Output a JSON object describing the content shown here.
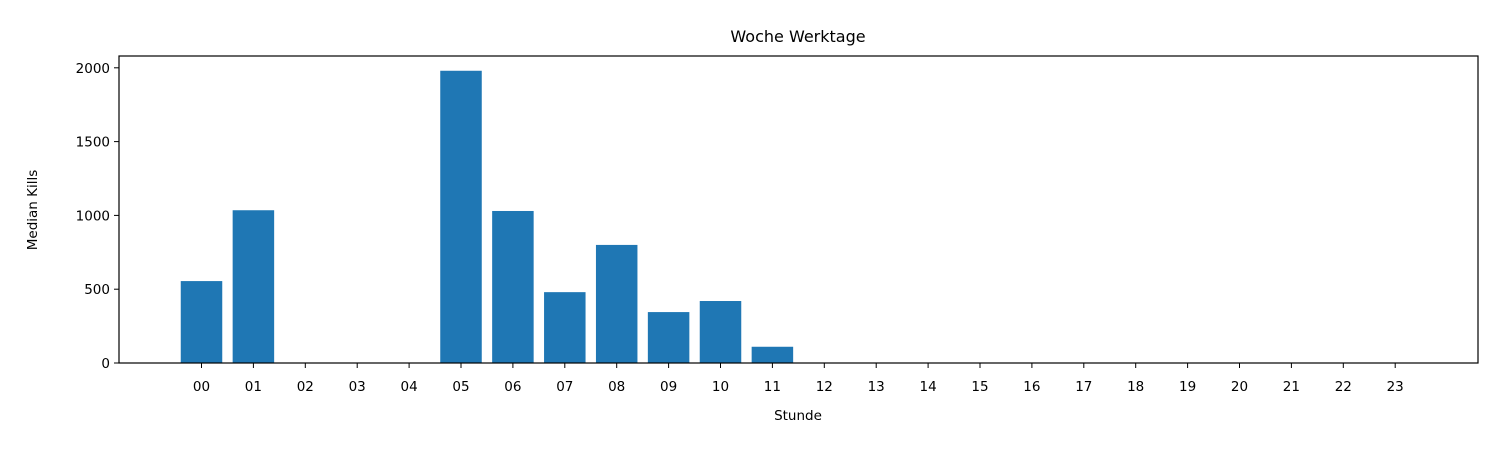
{
  "chart_data": {
    "type": "bar",
    "title": "Woche Werktage",
    "xlabel": "Stunde",
    "ylabel": "Median Kills",
    "categories": [
      "00",
      "01",
      "02",
      "03",
      "04",
      "05",
      "06",
      "07",
      "08",
      "09",
      "10",
      "11",
      "12",
      "13",
      "14",
      "15",
      "16",
      "17",
      "18",
      "19",
      "20",
      "21",
      "22",
      "23"
    ],
    "values": [
      555,
      1035,
      0,
      0,
      0,
      1980,
      1030,
      480,
      800,
      345,
      420,
      110,
      0,
      0,
      0,
      0,
      0,
      0,
      0,
      0,
      0,
      0,
      0,
      0
    ],
    "ylim": [
      0,
      2080
    ],
    "yticks": [
      0,
      500,
      1000,
      1500,
      2000
    ],
    "bar_color": "#1f77b4",
    "grid": false,
    "legend": "none"
  }
}
